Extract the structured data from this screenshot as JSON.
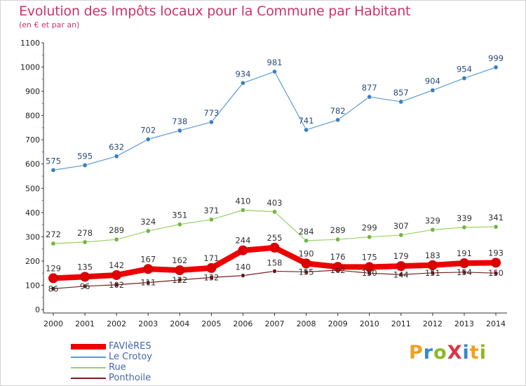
{
  "header": {
    "title": "Evolution des Impôts locaux pour la Commune par Habitant",
    "subtitle": "(en € et par an)"
  },
  "logo": {
    "text": "ProXiti",
    "letters": [
      {
        "ch": "P",
        "color": "#f0a020"
      },
      {
        "ch": "r",
        "color": "#3388cc"
      },
      {
        "ch": "o",
        "color": "#88bb22"
      },
      {
        "ch": "X",
        "color": "#dd3344"
      },
      {
        "ch": "i",
        "color": "#3388cc"
      },
      {
        "ch": "t",
        "color": "#f0a020"
      },
      {
        "ch": "i",
        "color": "#88bb22"
      }
    ]
  },
  "chart_data": {
    "type": "line",
    "title": "Evolution des Impôts locaux pour la Commune par Habitant",
    "subtitle": "(en € et par an)",
    "x": [
      "2000",
      "2001",
      "2002",
      "2003",
      "2004",
      "2005",
      "2006",
      "2007",
      "2008",
      "2009",
      "2010",
      "2011",
      "2012",
      "2013",
      "2014"
    ],
    "yticks": [
      0,
      100,
      200,
      300,
      400,
      500,
      600,
      700,
      800,
      900,
      1000,
      1100
    ],
    "ylim": [
      0,
      1100
    ],
    "grid": false,
    "legend_placement": "bottom-left",
    "series": [
      {
        "name": "Le Crotoy",
        "color": "#5b9bd5",
        "dot": "#3a7fc4",
        "width": 1.2,
        "marker_r": 3.2,
        "labelColor": "#2a4c7a",
        "values": [
          575,
          595,
          632,
          702,
          738,
          773,
          934,
          981,
          741,
          782,
          877,
          857,
          904,
          954,
          999
        ]
      },
      {
        "name": "Rue",
        "color": "#99d066",
        "dot": "#6fb83a",
        "width": 1.2,
        "marker_r": 3.2,
        "labelColor": "#333333",
        "values": [
          272,
          278,
          289,
          324,
          351,
          371,
          410,
          403,
          284,
          289,
          299,
          307,
          329,
          339,
          341
        ]
      },
      {
        "name": "Ponthoile",
        "color": "#7a1f1f",
        "dot": "#6a1515",
        "width": 1.2,
        "marker_r": 3.0,
        "labelColor": "#333333",
        "values": [
          86,
          96,
          102,
          111,
          122,
          132,
          140,
          158,
          155,
          162,
          150,
          144,
          151,
          154,
          150
        ],
        "labels": [
          "86",
          "96",
          "102",
          "111",
          "122",
          "132",
          "140",
          "158",
          "155",
          "162",
          "150",
          "144",
          "151",
          "154",
          "150"
        ]
      },
      {
        "name": "FAVIèRES",
        "color": "#ee0000",
        "dot": "#dd0000",
        "width": 8,
        "marker_r": 6.5,
        "labelColor": "#333333",
        "values": [
          129,
          135,
          142,
          167,
          162,
          171,
          244,
          255,
          190,
          176,
          175,
          179,
          183,
          191,
          193
        ]
      }
    ]
  }
}
